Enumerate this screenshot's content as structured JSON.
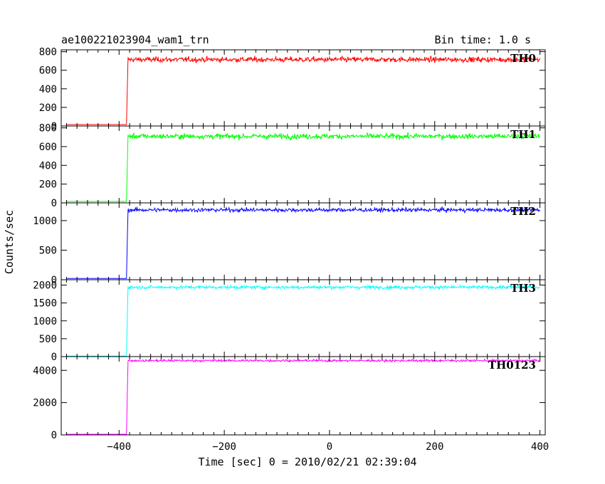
{
  "header": {
    "title": "ae100221023904_wam1_trn",
    "bin_time": "Bin time: 1.0 s"
  },
  "chart_data": {
    "type": "line",
    "title": "ae100221023904_wam1_trn",
    "xlabel": "Time [sec] 0 = 2010/02/21 02:39:04",
    "ylabel": "Counts/sec",
    "xlim": [
      -510,
      410
    ],
    "x_ticks": [
      -400,
      -200,
      0,
      200,
      400
    ],
    "x_tick_labels": [
      "−400",
      "−200",
      "0",
      "200",
      "400"
    ],
    "step_time": -385,
    "panels": [
      {
        "name": "TH0",
        "color": "#ff0000",
        "ylim": [
          0,
          820
        ],
        "yticks": [
          0,
          200,
          400,
          600,
          800
        ],
        "pre_level": 15,
        "post_level": 715,
        "noise": 25
      },
      {
        "name": "TH1",
        "color": "#00ff00",
        "ylim": [
          0,
          820
        ],
        "yticks": [
          0,
          200,
          400,
          600,
          800
        ],
        "pre_level": 15,
        "post_level": 710,
        "noise": 25
      },
      {
        "name": "TH2",
        "color": "#0000ff",
        "ylim": [
          0,
          1300
        ],
        "yticks": [
          0,
          500,
          1000
        ],
        "pre_level": 20,
        "post_level": 1180,
        "noise": 30
      },
      {
        "name": "TH3",
        "color": "#00ffff",
        "ylim": [
          0,
          2150
        ],
        "yticks": [
          0,
          500,
          1000,
          1500,
          2000
        ],
        "pre_level": 15,
        "post_level": 1940,
        "noise": 40
      },
      {
        "name": "TH0123",
        "color": "#ff00ff",
        "ylim": [
          0,
          4850
        ],
        "yticks": [
          0,
          2000,
          4000
        ],
        "pre_level": 40,
        "post_level": 4600,
        "noise": 60
      }
    ]
  }
}
